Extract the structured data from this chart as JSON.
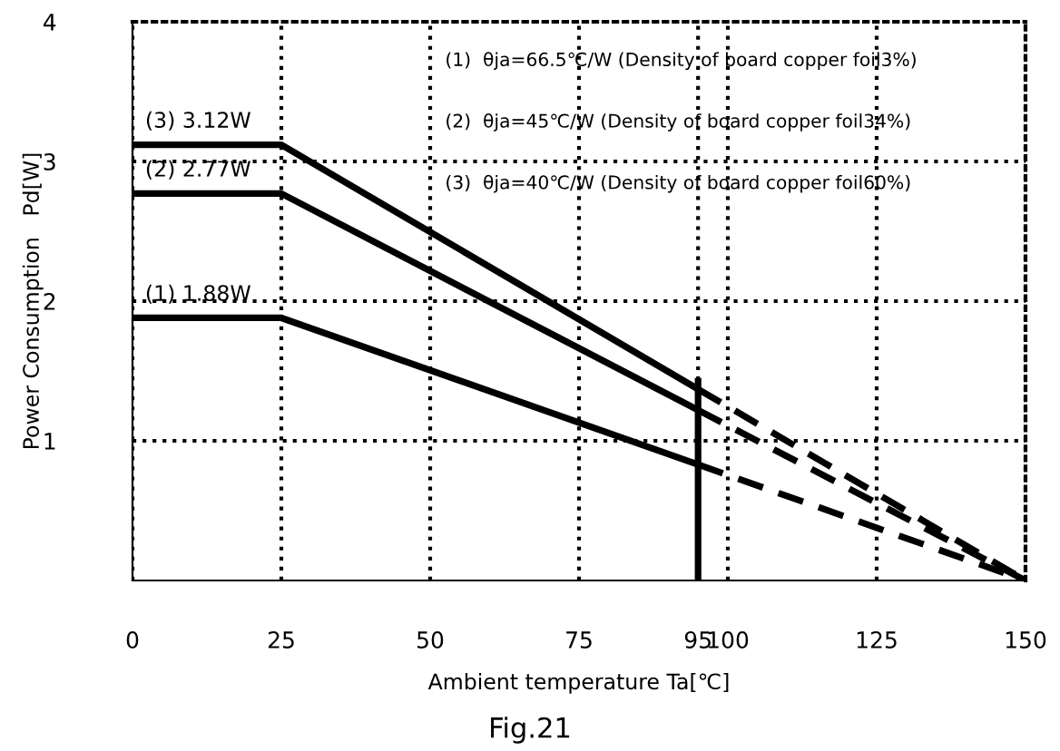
{
  "chart_data": {
    "type": "line",
    "title": "Fig.21",
    "xlabel": "Ambient temperature Ta[℃]",
    "ylabel": "Power Consumption   Pd[W]",
    "xlim": [
      0,
      150
    ],
    "xticks": [
      0,
      25,
      50,
      75,
      95,
      100,
      125,
      150
    ],
    "ylim": [
      0,
      4
    ],
    "yticks": [
      1,
      2,
      3,
      4
    ],
    "grid": true,
    "legend": false,
    "marker": "none",
    "series": [
      {
        "color": "#000000",
        "x": [
          0,
          25,
          95
        ],
        "values": [
          3.12,
          3.12,
          1.37
        ],
        "line_style": "solid"
      },
      {
        "color": "#000000",
        "x": [
          95,
          150
        ],
        "values": [
          1.37,
          0
        ],
        "line_style": "dashed"
      },
      {
        "color": "#000000",
        "x": [
          0,
          25,
          95
        ],
        "values": [
          2.77,
          2.77,
          1.22
        ],
        "line_style": "solid"
      },
      {
        "color": "#000000",
        "x": [
          95,
          150
        ],
        "values": [
          1.22,
          0
        ],
        "line_style": "dashed"
      },
      {
        "color": "#000000",
        "x": [
          0,
          25,
          95
        ],
        "values": [
          1.88,
          1.88,
          0.83
        ],
        "line_style": "solid"
      },
      {
        "color": "#000000",
        "x": [
          95,
          150
        ],
        "values": [
          0.83,
          0
        ],
        "line_style": "dashed"
      },
      {
        "color": "#000000",
        "x": [
          95,
          95
        ],
        "values": [
          0,
          1.45
        ],
        "line_style": "solid"
      }
    ],
    "annotations": [
      {
        "text": "(3) 3.12W",
        "y": 3.12
      },
      {
        "text": "(2) 2.77W",
        "y": 2.77
      },
      {
        "text": "(1) 1.88W",
        "y": 1.88
      },
      "(1)  θja=66.5℃/W (Density of board copper foil3%)",
      "(2)  θja=45℃/W (Density of board copper foil34%)",
      "(3)  θja=40℃/W (Density of board copper foil60%)"
    ]
  }
}
